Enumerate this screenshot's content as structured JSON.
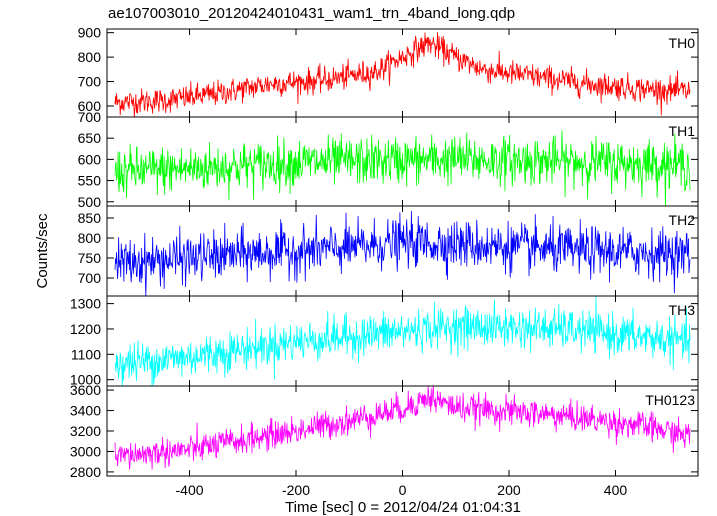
{
  "chart_data": {
    "type": "line",
    "title": "ae107003010_20120424010431_wam1_trn_4band_long.qdp",
    "xlabel": "Time [sec] 0 = 2012/04/24 01:04:31",
    "ylabel": "Counts/sec",
    "xlim": [
      -555,
      555
    ],
    "x_ticks": [
      -400,
      -200,
      0,
      200,
      400
    ],
    "x_start": -540,
    "x_end": 540,
    "panels": [
      {
        "name": "TH0",
        "color": "#ff0000",
        "ylim": [
          555,
          915
        ],
        "y_ticks": [
          600,
          700,
          800,
          900
        ],
        "noise": 26,
        "trend": [
          [
            -540,
            615
          ],
          [
            -450,
            622
          ],
          [
            -350,
            650
          ],
          [
            -250,
            690
          ],
          [
            -150,
            705
          ],
          [
            -50,
            740
          ],
          [
            0,
            800
          ],
          [
            50,
            860
          ],
          [
            100,
            800
          ],
          [
            150,
            750
          ],
          [
            250,
            720
          ],
          [
            350,
            690
          ],
          [
            450,
            670
          ],
          [
            540,
            660
          ]
        ]
      },
      {
        "name": "TH1",
        "color": "#00ff00",
        "ylim": [
          490,
          700
        ],
        "y_ticks": [
          500,
          550,
          600,
          650,
          700
        ],
        "noise": 28,
        "trend": [
          [
            -540,
            570
          ],
          [
            -400,
            578
          ],
          [
            -200,
            592
          ],
          [
            0,
            598
          ],
          [
            100,
            600
          ],
          [
            300,
            595
          ],
          [
            540,
            587
          ]
        ]
      },
      {
        "name": "TH2",
        "color": "#0000ff",
        "ylim": [
          655,
          880
        ],
        "y_ticks": [
          700,
          750,
          800,
          850
        ],
        "noise": 30,
        "trend": [
          [
            -540,
            735
          ],
          [
            -300,
            760
          ],
          [
            -100,
            775
          ],
          [
            0,
            790
          ],
          [
            100,
            785
          ],
          [
            300,
            770
          ],
          [
            540,
            760
          ]
        ]
      },
      {
        "name": "TH3",
        "color": "#00ffff",
        "ylim": [
          975,
          1330
        ],
        "y_ticks": [
          1000,
          1100,
          1200,
          1300
        ],
        "noise": 40,
        "trend": [
          [
            -540,
            1060
          ],
          [
            -400,
            1090
          ],
          [
            -200,
            1150
          ],
          [
            0,
            1190
          ],
          [
            100,
            1210
          ],
          [
            300,
            1200
          ],
          [
            540,
            1150
          ]
        ]
      },
      {
        "name": "TH0123",
        "color": "#ff00ff",
        "ylim": [
          2760,
          3640
        ],
        "y_ticks": [
          2800,
          3000,
          3200,
          3400,
          3600
        ],
        "noise": 70,
        "trend": [
          [
            -540,
            2950
          ],
          [
            -400,
            3020
          ],
          [
            -200,
            3200
          ],
          [
            -100,
            3300
          ],
          [
            0,
            3420
          ],
          [
            50,
            3530
          ],
          [
            100,
            3430
          ],
          [
            300,
            3350
          ],
          [
            450,
            3250
          ],
          [
            540,
            3150
          ]
        ]
      }
    ]
  }
}
